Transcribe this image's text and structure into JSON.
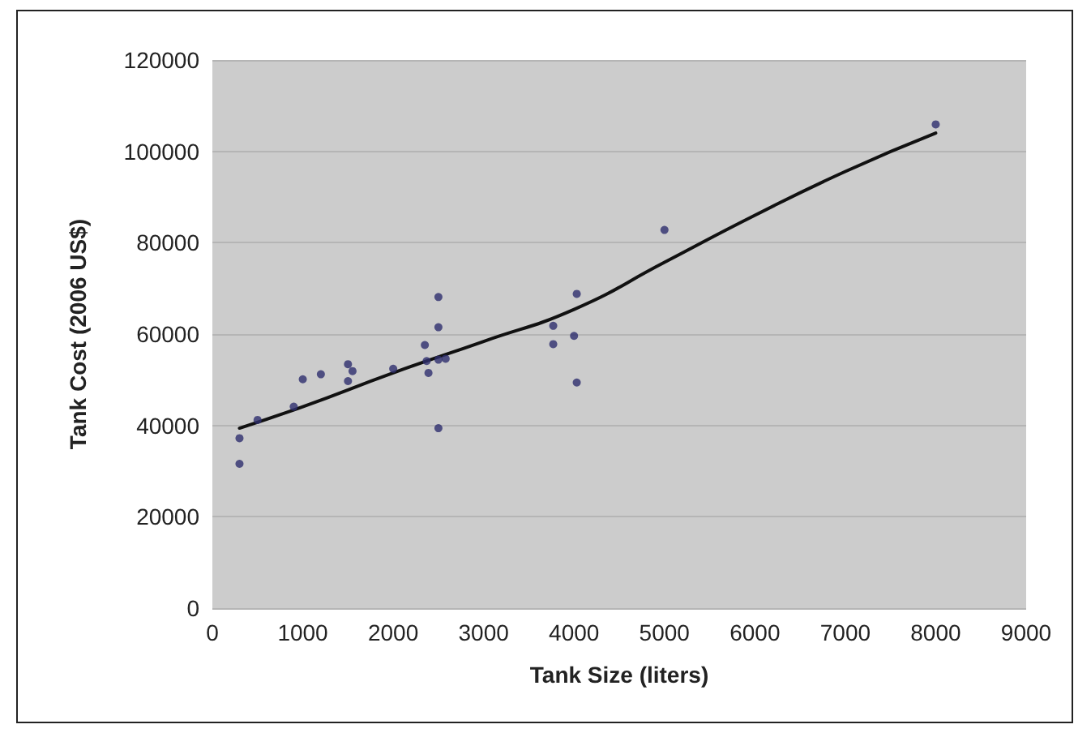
{
  "chart_data": {
    "type": "scatter",
    "xlabel": "Tank Size (liters)",
    "ylabel": "Tank Cost (2006 US$)",
    "xlim": [
      0,
      9000
    ],
    "xticks": [
      0,
      1000,
      2000,
      3000,
      4000,
      5000,
      6000,
      7000,
      8000,
      9000
    ],
    "ylim": [
      0,
      120000
    ],
    "yticks": [
      0,
      20000,
      40000,
      60000,
      80000,
      100000,
      120000
    ],
    "grid": "y",
    "series": [
      {
        "color": "#2e2e6e",
        "marker": "circle",
        "x": [
          300,
          300,
          500,
          900,
          1000,
          1200,
          1500,
          1500,
          1550,
          2000,
          2350,
          2370,
          2390,
          2500,
          2500,
          2500,
          2500,
          2580,
          3770,
          3770,
          4000,
          4030,
          4030,
          5000,
          8000
        ],
        "values": [
          37200,
          31600,
          41200,
          44100,
          50100,
          51200,
          53400,
          49700,
          51900,
          52400,
          57600,
          54100,
          51500,
          68100,
          61500,
          54400,
          39400,
          54600,
          61800,
          57800,
          59600,
          68800,
          49400,
          82800,
          105900
        ]
      },
      {
        "type": "line",
        "color": "#111111",
        "marker": "none",
        "line_style": "solid",
        "x": [
          300,
          1000,
          2000,
          3000,
          4000,
          5000,
          6000,
          7000,
          8000
        ],
        "values": [
          39400,
          44100,
          51500,
          58400,
          65400,
          75700,
          86000,
          95600,
          104000
        ]
      }
    ]
  }
}
